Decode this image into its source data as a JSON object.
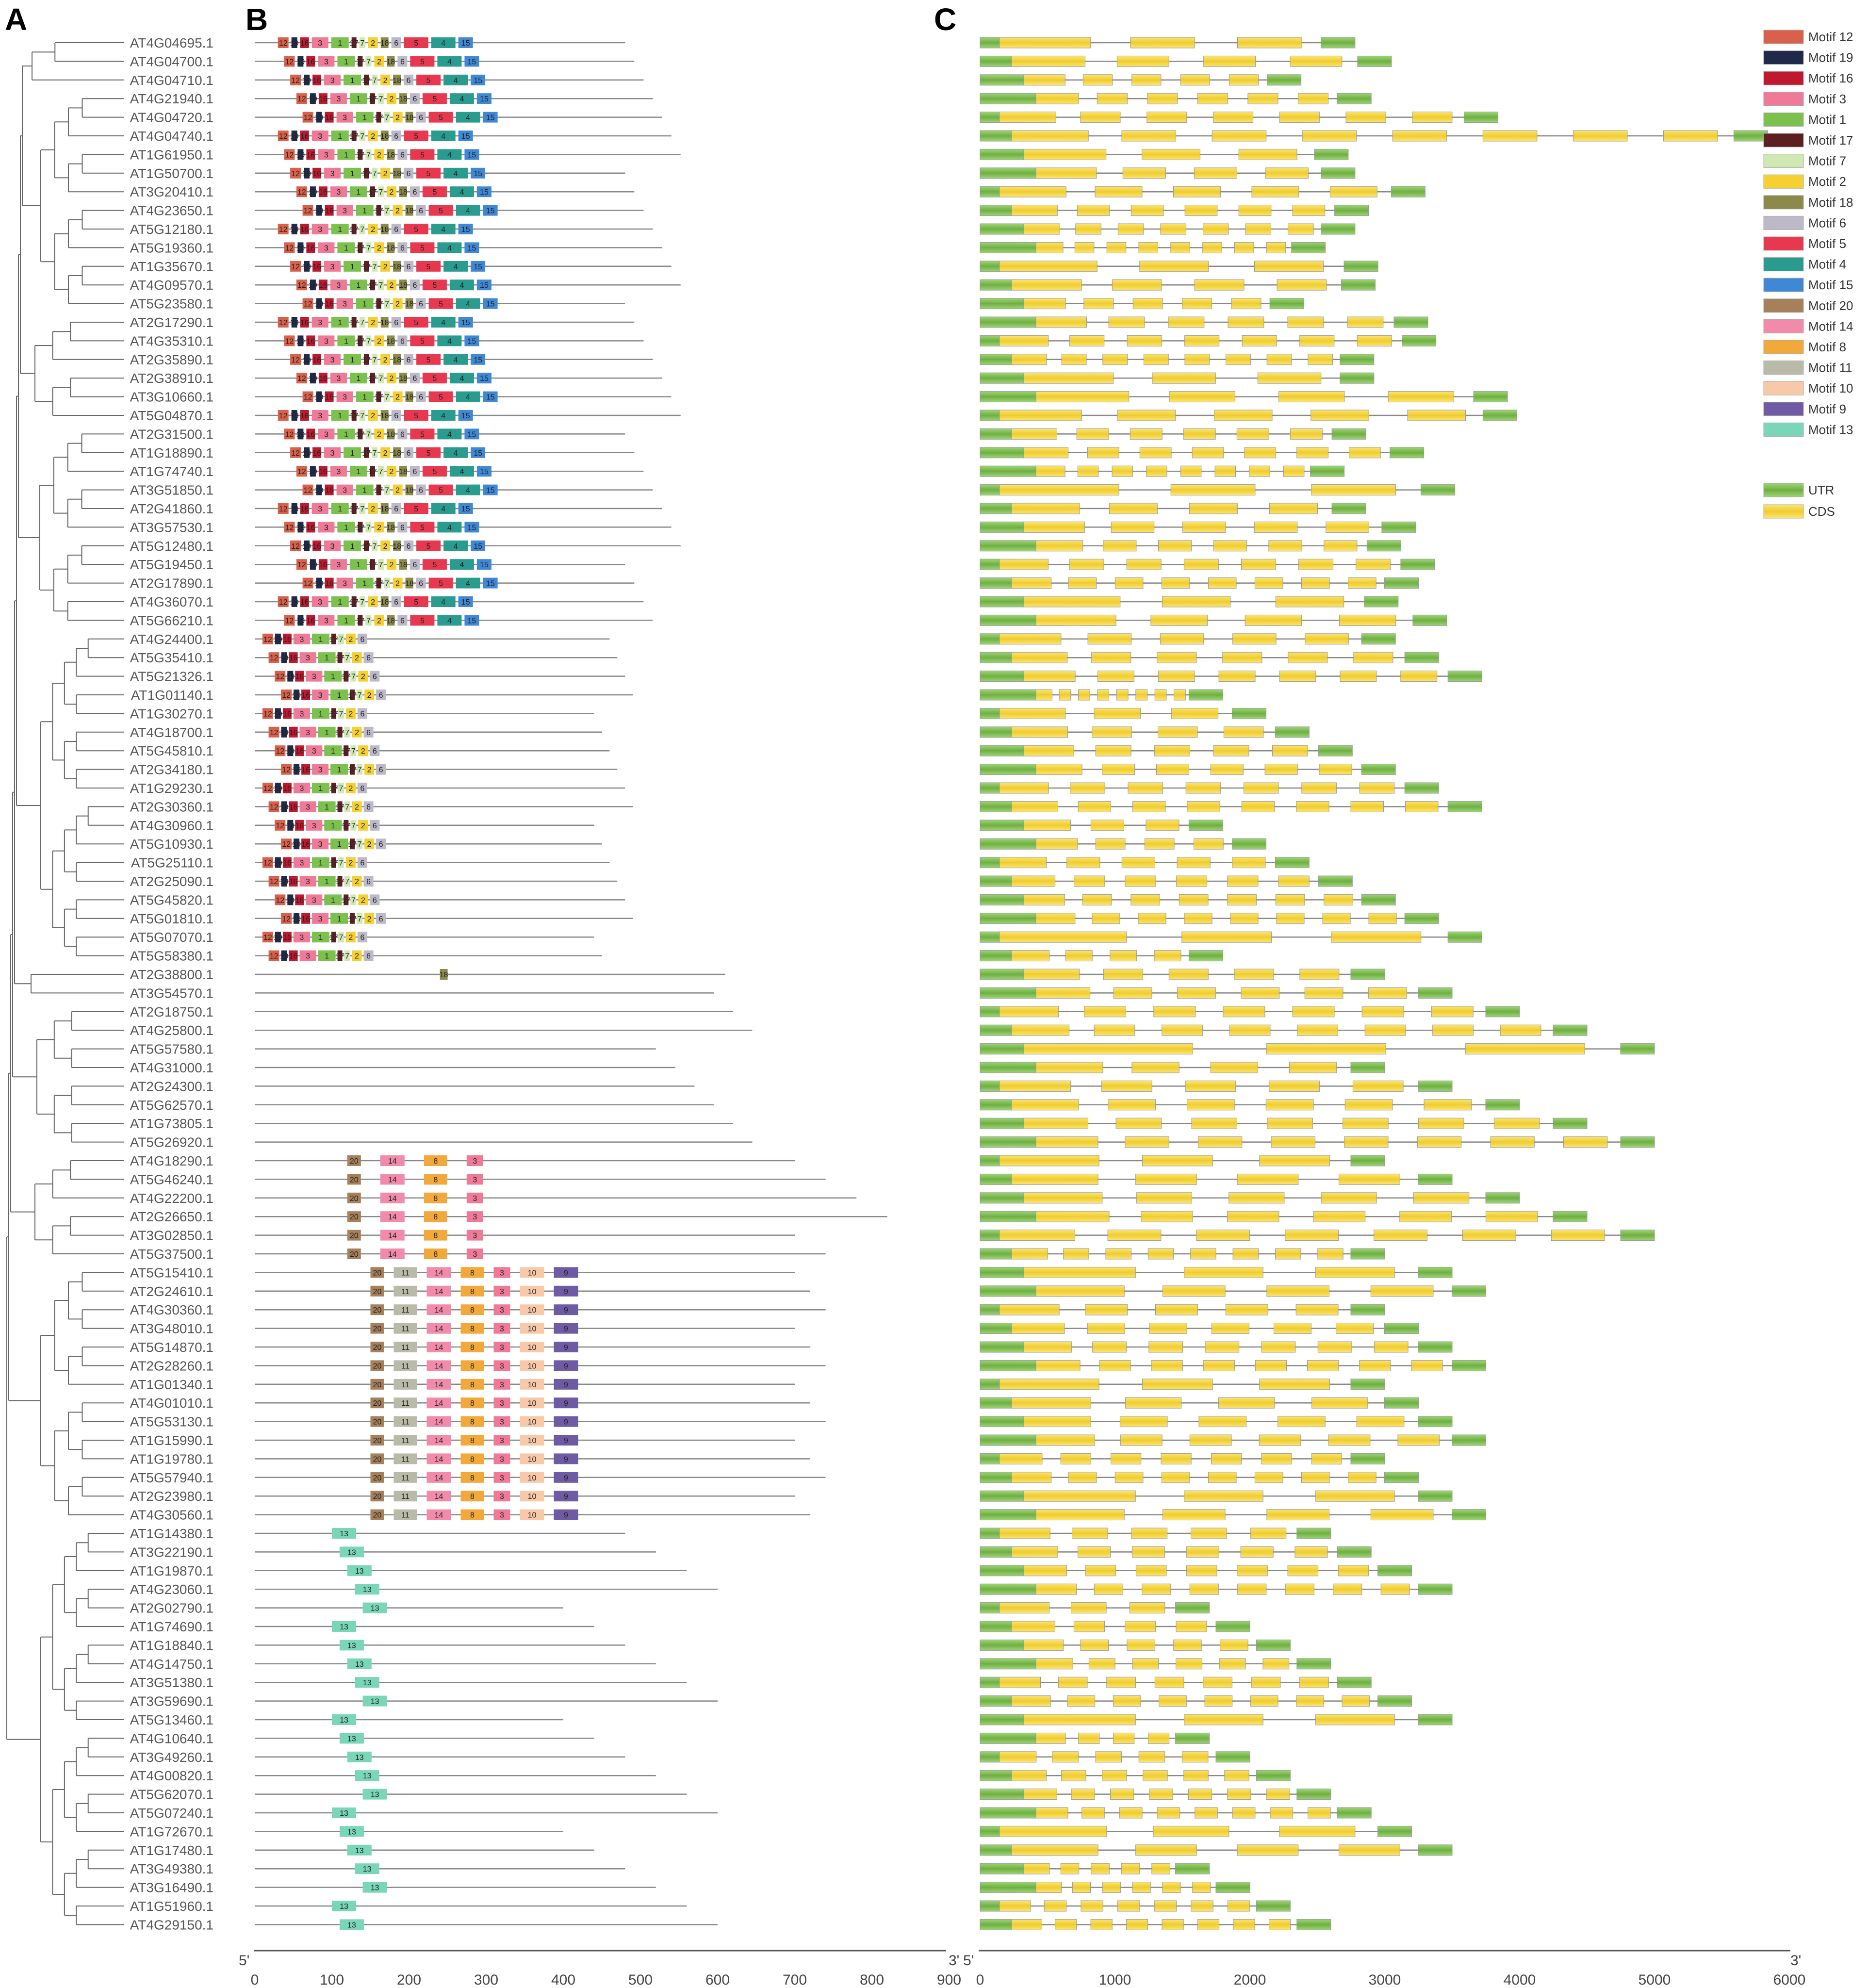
{
  "panel_labels": [
    "A",
    "B",
    "C"
  ],
  "genes": [
    "AT4G04695.1",
    "AT4G04700.1",
    "AT4G04710.1",
    "AT4G21940.1",
    "AT4G04720.1",
    "AT4G04740.1",
    "AT1G61950.1",
    "AT1G50700.1",
    "AT3G20410.1",
    "AT4G23650.1",
    "AT5G12180.1",
    "AT5G19360.1",
    "AT1G35670.1",
    "AT4G09570.1",
    "AT5G23580.1",
    "AT2G17290.1",
    "AT4G35310.1",
    "AT2G35890.1",
    "AT2G38910.1",
    "AT3G10660.1",
    "AT5G04870.1",
    "AT2G31500.1",
    "AT1G18890.1",
    "AT1G74740.1",
    "AT3G51850.1",
    "AT2G41860.1",
    "AT3G57530.1",
    "AT5G12480.1",
    "AT5G19450.1",
    "AT2G17890.1",
    "AT4G36070.1",
    "AT5G66210.1",
    "AT4G24400.1",
    "AT5G35410.1",
    "AT5G21326.1",
    "AT1G01140.1",
    "AT1G30270.1",
    "AT4G18700.1",
    "AT5G45810.1",
    "AT2G34180.1",
    "AT1G29230.1",
    "AT2G30360.1",
    "AT4G30960.1",
    "AT5G10930.1",
    "AT5G25110.1",
    "AT2G25090.1",
    "AT5G45820.1",
    "AT5G01810.1",
    "AT5G07070.1",
    "AT5G58380.1",
    "AT2G38800.1",
    "AT3G54570.1",
    "AT2G18750.1",
    "AT4G25800.1",
    "AT5G57580.1",
    "AT4G31000.1",
    "AT2G24300.1",
    "AT5G62570.1",
    "AT1G73805.1",
    "AT5G26920.1",
    "AT4G18290.1",
    "AT5G46240.1",
    "AT4G22200.1",
    "AT2G26650.1",
    "AT3G02850.1",
    "AT5G37500.1",
    "AT5G15410.1",
    "AT2G24610.1",
    "AT4G30360.1",
    "AT3G48010.1",
    "AT5G14870.1",
    "AT2G28260.1",
    "AT1G01340.1",
    "AT4G01010.1",
    "AT5G53130.1",
    "AT1G15990.1",
    "AT1G19780.1",
    "AT5G57940.1",
    "AT2G23980.1",
    "AT4G30560.1",
    "AT1G14380.1",
    "AT3G22190.1",
    "AT1G19870.1",
    "AT4G23060.1",
    "AT2G02790.1",
    "AT1G74690.1",
    "AT1G18840.1",
    "AT4G14750.1",
    "AT3G51380.1",
    "AT3G59690.1",
    "AT5G13460.1",
    "AT4G10640.1",
    "AT3G49260.1",
    "AT4G00820.1",
    "AT5G62070.1",
    "AT5G07240.1",
    "AT1G72670.1",
    "AT1G17480.1",
    "AT3G49380.1",
    "AT3G16490.1",
    "AT1G51960.1",
    "AT4G29150.1"
  ],
  "protein_axis": {
    "ticks": [
      "0",
      "100",
      "200",
      "300",
      "400",
      "500",
      "600",
      "700",
      "800",
      "900"
    ],
    "start_label": "5'",
    "end_label": "3'"
  },
  "gene_axis": {
    "ticks": [
      "0",
      "1000",
      "2000",
      "3000",
      "4000",
      "5000",
      "6000"
    ],
    "start_label": "5'",
    "end_label": "3'"
  },
  "motif_legend": [
    {
      "label": "Motif 12",
      "color": "#d9604a"
    },
    {
      "label": "Motif 19",
      "color": "#1f2a4a"
    },
    {
      "label": "Motif 16",
      "color": "#c0182e"
    },
    {
      "label": "Motif 3",
      "color": "#ee7a97"
    },
    {
      "label": "Motif 1",
      "color": "#7cc04d"
    },
    {
      "label": "Motif 17",
      "color": "#5e1f22"
    },
    {
      "label": "Motif 7",
      "color": "#cfe8b4"
    },
    {
      "label": "Motif 2",
      "color": "#f5d033"
    },
    {
      "label": "Motif 18",
      "color": "#8b8a4a"
    },
    {
      "label": "Motif 6",
      "color": "#bdb9c8"
    },
    {
      "label": "Motif 5",
      "color": "#e8384f"
    },
    {
      "label": "Motif 4",
      "color": "#2a9b8f"
    },
    {
      "label": "Motif 15",
      "color": "#3f88d6"
    },
    {
      "label": "Motif 20",
      "color": "#a5805a"
    },
    {
      "label": "Motif 14",
      "color": "#f28bab"
    },
    {
      "label": "Motif 8",
      "color": "#f2a93b"
    },
    {
      "label": "Motif 11",
      "color": "#b9baa7"
    },
    {
      "label": "Motif 10",
      "color": "#f8c9a8"
    },
    {
      "label": "Motif 9",
      "color": "#6f5ba4"
    },
    {
      "label": "Motif 13",
      "color": "#79d6b6"
    }
  ],
  "structure_legend": [
    {
      "label": "UTR",
      "color": "#76b84a"
    },
    {
      "label": "CDS",
      "color": "#f3d23e"
    }
  ]
}
